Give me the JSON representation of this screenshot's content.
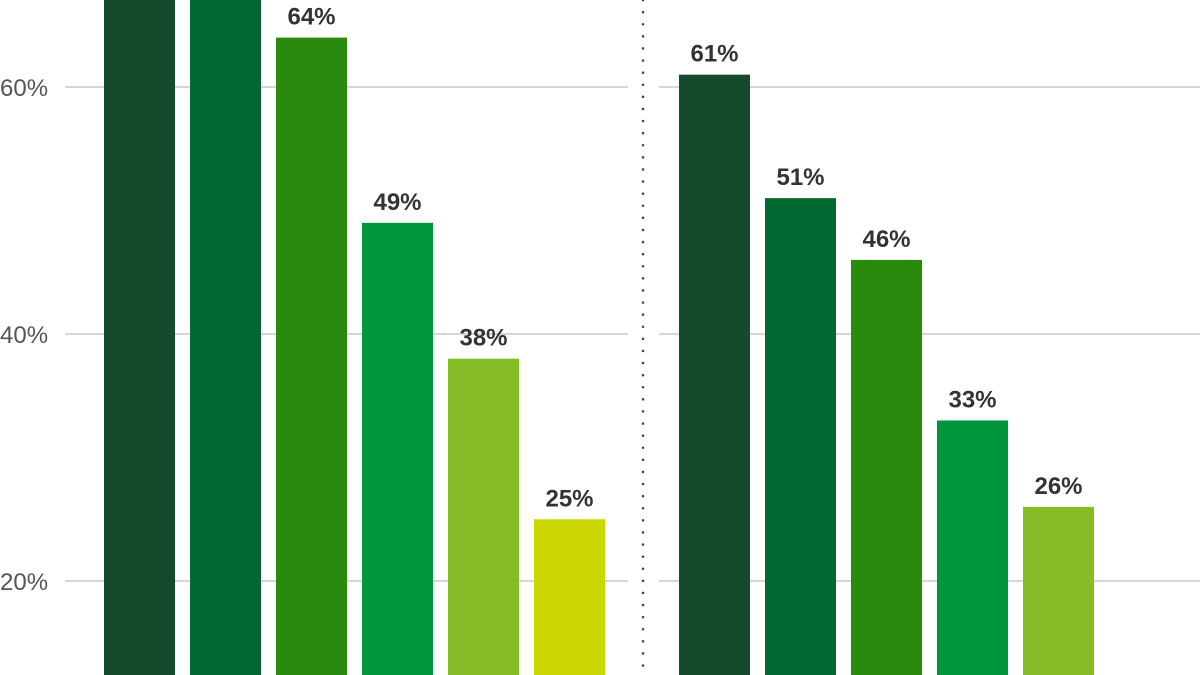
{
  "chart_data": {
    "type": "bar",
    "title": "",
    "xlabel": "",
    "ylabel": "",
    "ylim": [
      0,
      68
    ],
    "yticks": [
      "20%",
      "40%",
      "60%"
    ],
    "ytick_values": [
      20,
      40,
      60
    ],
    "grid": true,
    "panels": [
      {
        "name": "left",
        "values": [
          null,
          null,
          64,
          49,
          38,
          25
        ],
        "labels": [
          "",
          "",
          "64%",
          "49%",
          "38%",
          "25%"
        ],
        "colors": [
          "#154a2c",
          "#006830",
          "#2a8a0e",
          "#00973c",
          "#86bc25",
          "#c9d600"
        ]
      },
      {
        "name": "right",
        "values": [
          61,
          51,
          46,
          33,
          26
        ],
        "labels": [
          "61%",
          "51%",
          "46%",
          "33%",
          "26%"
        ],
        "colors": [
          "#154a2c",
          "#006830",
          "#2a8a0e",
          "#00973c",
          "#86bc25"
        ]
      }
    ]
  }
}
